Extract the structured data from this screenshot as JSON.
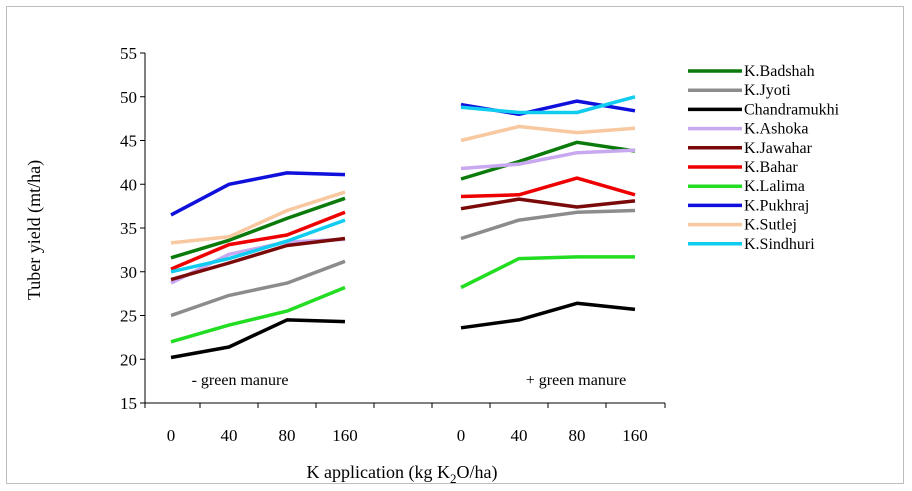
{
  "chart_data": {
    "type": "line",
    "ylabel": "Tuber yield (mt/ha)",
    "xlabel_main": "K application (kg K",
    "xlabel_sub": "2",
    "xlabel_tail": "O/ha)",
    "ylim": [
      15,
      55
    ],
    "yticks": [
      "15",
      "20",
      "25",
      "30",
      "35",
      "40",
      "45",
      "50",
      "55"
    ],
    "groups": [
      {
        "annotation": "- green manure",
        "x": [
          "0",
          "40",
          "80",
          "160"
        ]
      },
      {
        "annotation": "+ green manure",
        "x": [
          "0",
          "40",
          "80",
          "160"
        ]
      }
    ],
    "grid": false,
    "legend_position": "right",
    "series": [
      {
        "name": "K.Badshah",
        "color": "#0a7a0a",
        "values": [
          [
            31.6,
            33.6,
            36.1,
            38.4
          ],
          [
            40.6,
            42.6,
            44.8,
            43.8
          ]
        ]
      },
      {
        "name": "K.Jyoti",
        "color": "#8c8c8c",
        "values": [
          [
            25.0,
            27.3,
            28.7,
            31.2
          ],
          [
            33.8,
            35.9,
            36.8,
            37.0
          ]
        ]
      },
      {
        "name": "Chandramukhi",
        "color": "#000000",
        "values": [
          [
            20.2,
            21.4,
            24.5,
            24.3
          ],
          [
            23.6,
            24.5,
            26.4,
            25.7
          ]
        ]
      },
      {
        "name": "K.Ashoka",
        "color": "#c8a8f0",
        "values": [
          [
            28.7,
            32.0,
            33.4,
            33.7
          ],
          [
            41.8,
            42.3,
            43.6,
            43.9
          ]
        ]
      },
      {
        "name": "K.Jawahar",
        "color": "#7a0a0a",
        "values": [
          [
            29.1,
            31.0,
            33.0,
            33.8
          ],
          [
            37.2,
            38.3,
            37.4,
            38.1
          ]
        ]
      },
      {
        "name": "K.Bahar",
        "color": "#ee0000",
        "values": [
          [
            30.3,
            33.1,
            34.2,
            36.8
          ],
          [
            38.6,
            38.8,
            40.7,
            38.8
          ]
        ]
      },
      {
        "name": "K.Lalima",
        "color": "#22dd22",
        "values": [
          [
            22.0,
            23.9,
            25.5,
            28.2
          ],
          [
            28.2,
            31.5,
            31.7,
            31.7
          ]
        ]
      },
      {
        "name": "K.Pukhraj",
        "color": "#1010dd",
        "values": [
          [
            36.5,
            40.0,
            41.3,
            41.1
          ],
          [
            49.1,
            48.0,
            49.5,
            48.4
          ]
        ]
      },
      {
        "name": "K.Sutlej",
        "color": "#f8c8a0",
        "values": [
          [
            33.3,
            34.0,
            37.0,
            39.1
          ],
          [
            45.0,
            46.6,
            45.9,
            46.4
          ]
        ]
      },
      {
        "name": "K.Sindhuri",
        "color": "#10ccf0",
        "values": [
          [
            30.0,
            31.5,
            33.5,
            35.9
          ],
          [
            48.8,
            48.2,
            48.2,
            50.0
          ]
        ]
      }
    ]
  }
}
